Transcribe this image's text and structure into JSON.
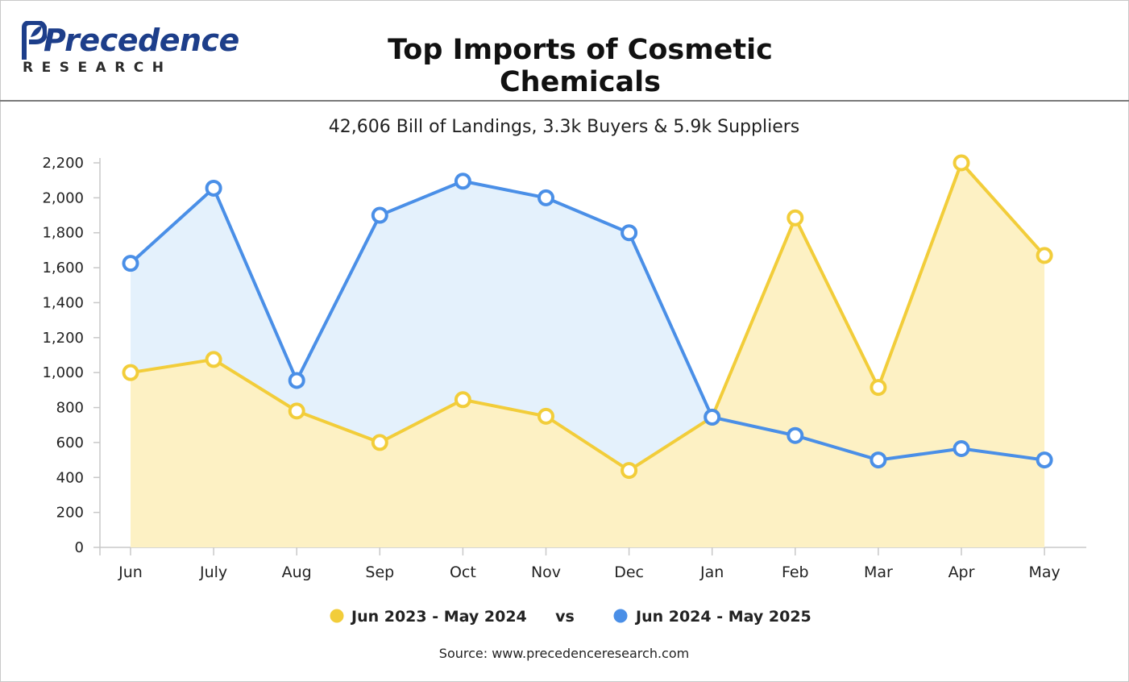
{
  "header": {
    "logo_main": "Precedence",
    "logo_sub": "RESEARCH",
    "title": "Top Imports of Cosmetic Chemicals"
  },
  "chart_data": {
    "type": "area",
    "subtitle": "42,606 Bill of Landings, 3.3k Buyers & 5.9k Suppliers",
    "categories": [
      "Jun",
      "July",
      "Aug",
      "Sep",
      "Oct",
      "Nov",
      "Dec",
      "Jan",
      "Feb",
      "Mar",
      "Apr",
      "May"
    ],
    "ylim": [
      0,
      2200
    ],
    "yticks": [
      0,
      200,
      400,
      600,
      800,
      1000,
      1200,
      1400,
      1600,
      1800,
      2000,
      2200
    ],
    "ytick_labels": [
      "0",
      "200",
      "400",
      "600",
      "800",
      "1,000",
      "1,200",
      "1,400",
      "1,600",
      "1,800",
      "2,000",
      "2,200"
    ],
    "series": [
      {
        "name": "Jun 2023 - May 2024",
        "color": "#f2cd3a",
        "fill": "#fdf1c4",
        "values": [
          1000,
          1075,
          780,
          600,
          845,
          750,
          440,
          745,
          1885,
          915,
          2200,
          1670
        ]
      },
      {
        "name": "Jun 2024 - May 2025",
        "color": "#4a8fe7",
        "fill": "#e4f1fc",
        "values": [
          1625,
          2055,
          955,
          1900,
          2095,
          2000,
          1800,
          745,
          640,
          500,
          565,
          500
        ]
      }
    ],
    "legend_separator": "vs",
    "legend_position": "bottom",
    "grid": false,
    "source": "Source: www.precedenceresearch.com"
  }
}
